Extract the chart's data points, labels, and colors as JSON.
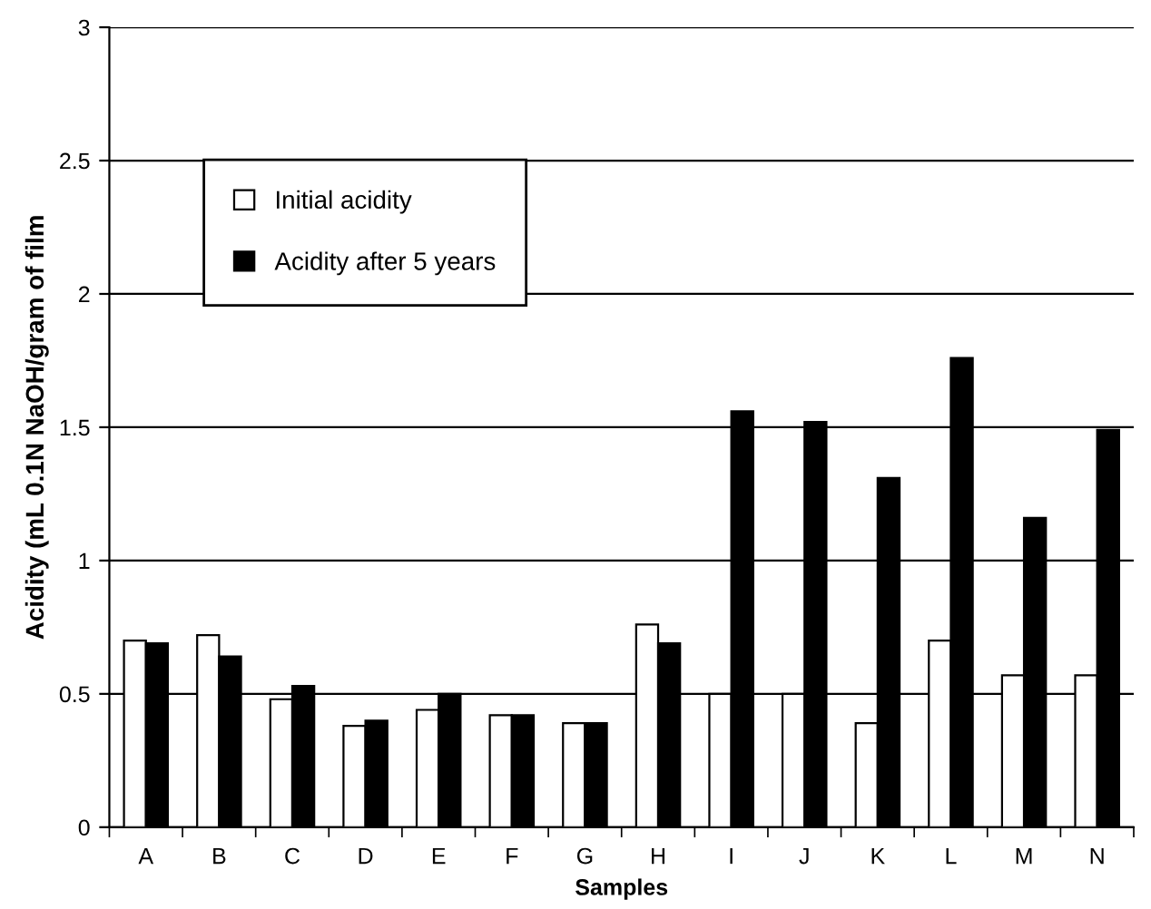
{
  "chart_data": {
    "type": "bar",
    "xlabel": "Samples",
    "ylabel": "Acidity (mL 0.1N NaOH/gram of film",
    "categories": [
      "A",
      "B",
      "C",
      "D",
      "E",
      "F",
      "G",
      "H",
      "I",
      "J",
      "K",
      "L",
      "M",
      "N"
    ],
    "series": [
      {
        "name": "Initial acidity",
        "color": "#ffffff",
        "values": [
          0.7,
          0.72,
          0.48,
          0.38,
          0.44,
          0.42,
          0.39,
          0.76,
          0.5,
          0.5,
          0.39,
          0.7,
          0.57,
          0.57
        ]
      },
      {
        "name": "Acidity after 5 years",
        "color": "#000000",
        "values": [
          0.69,
          0.64,
          0.53,
          0.4,
          0.5,
          0.42,
          0.39,
          0.69,
          1.56,
          1.52,
          1.31,
          1.76,
          1.16,
          1.49
        ]
      }
    ],
    "ylim": [
      0,
      3
    ],
    "yticks": [
      0,
      0.5,
      1,
      1.5,
      2,
      2.5,
      3
    ],
    "grid": "y",
    "legend": "top left"
  }
}
